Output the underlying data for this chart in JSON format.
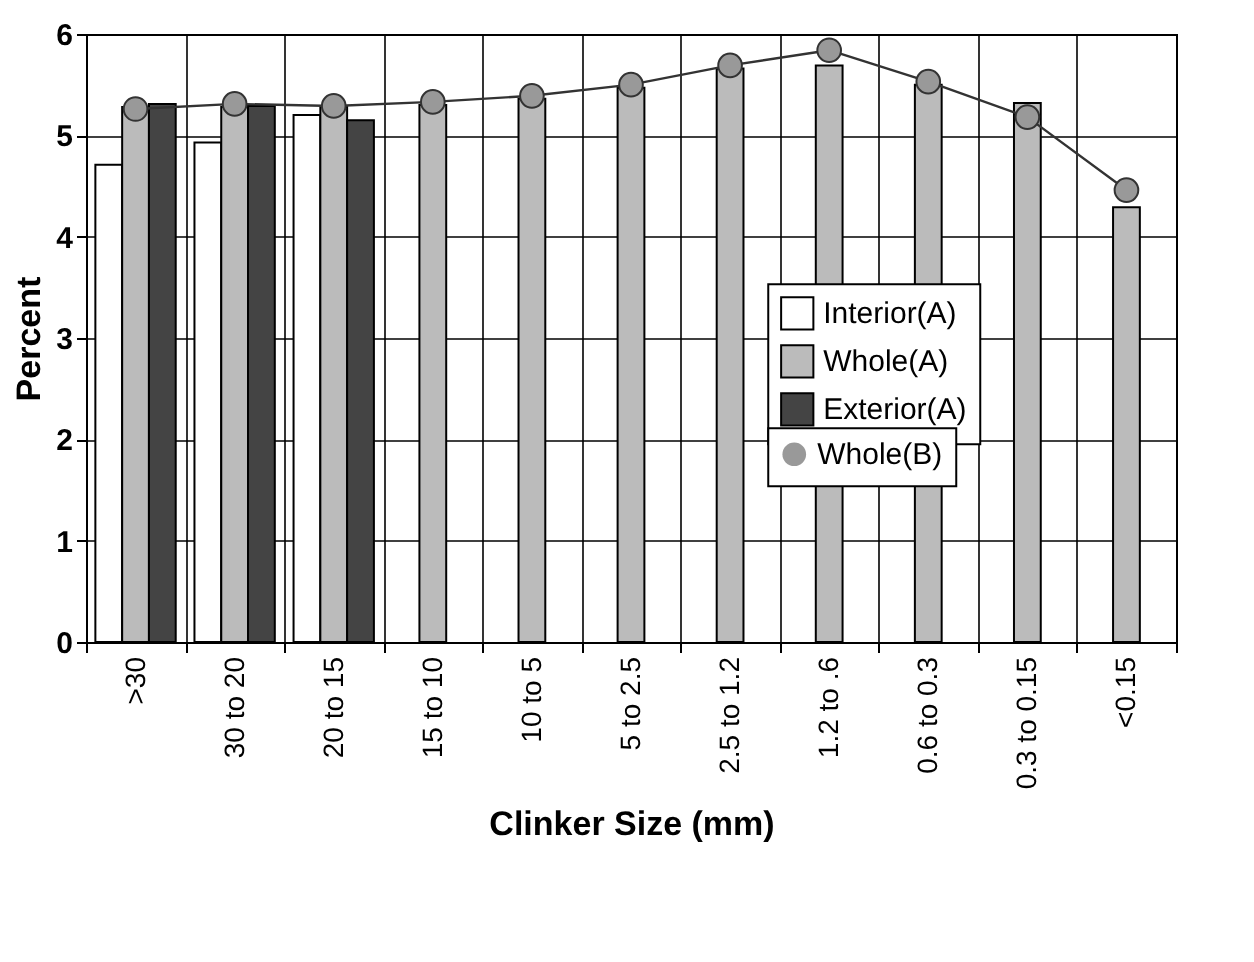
{
  "chart_data": {
    "type": "bar",
    "xlabel": "Clinker Size (mm)",
    "ylabel": "Percent",
    "categories": [
      ">30",
      "30 to 20",
      "20 to 15",
      "15 to 10",
      "10 to 5",
      "5 to 2.5",
      "2.5 to 1.2",
      "1.2 to .6",
      "0.6 to 0.3",
      "0.3 to 0.15",
      "<0.15"
    ],
    "series": [
      {
        "name": "Interior(A)",
        "color": "#ffffff",
        "values": [
          4.71,
          4.93,
          5.2,
          null,
          null,
          null,
          null,
          null,
          null,
          null,
          null
        ]
      },
      {
        "name": "Whole(A)",
        "color": "#bbbbbb",
        "values": [
          5.28,
          5.28,
          5.28,
          5.3,
          5.36,
          5.47,
          5.66,
          5.69,
          5.5,
          5.32,
          4.29
        ]
      },
      {
        "name": "Exterior(A)",
        "color": "#444444",
        "values": [
          5.31,
          5.29,
          5.15,
          null,
          null,
          null,
          null,
          null,
          null,
          null,
          null
        ]
      },
      {
        "name": "Whole(B)",
        "type": "line",
        "color": "#999999",
        "values": [
          5.26,
          5.31,
          5.29,
          5.33,
          5.39,
          5.5,
          5.69,
          5.84,
          5.53,
          5.18,
          4.46
        ]
      }
    ],
    "ylim": [
      0,
      6
    ],
    "yticks": [
      0,
      1,
      2,
      3,
      4,
      5,
      6
    ],
    "grid": true,
    "legend": "right",
    "marker": "circle"
  }
}
